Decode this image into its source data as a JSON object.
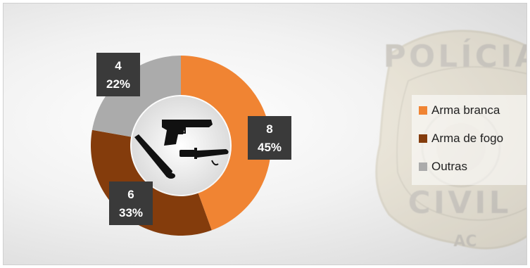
{
  "chart_data": {
    "type": "pie",
    "variant": "donut",
    "categories": [
      "Arma branca",
      "Arma de fogo",
      "Outras"
    ],
    "values": [
      8,
      6,
      4
    ],
    "percent_labels": [
      "45%",
      "33%",
      "22%"
    ],
    "value_labels": [
      "8",
      "6",
      "4"
    ],
    "colors": [
      "#F08433",
      "#843C0C",
      "#ABABAB"
    ],
    "legend_position": "right",
    "title": ""
  },
  "watermark": {
    "top_text": "POLÍCIA",
    "bottom_text": "CIVIL",
    "sub_text": "AC"
  },
  "center_icons": [
    "pistol-icon",
    "baseball-bat-icon",
    "knife-icon"
  ]
}
